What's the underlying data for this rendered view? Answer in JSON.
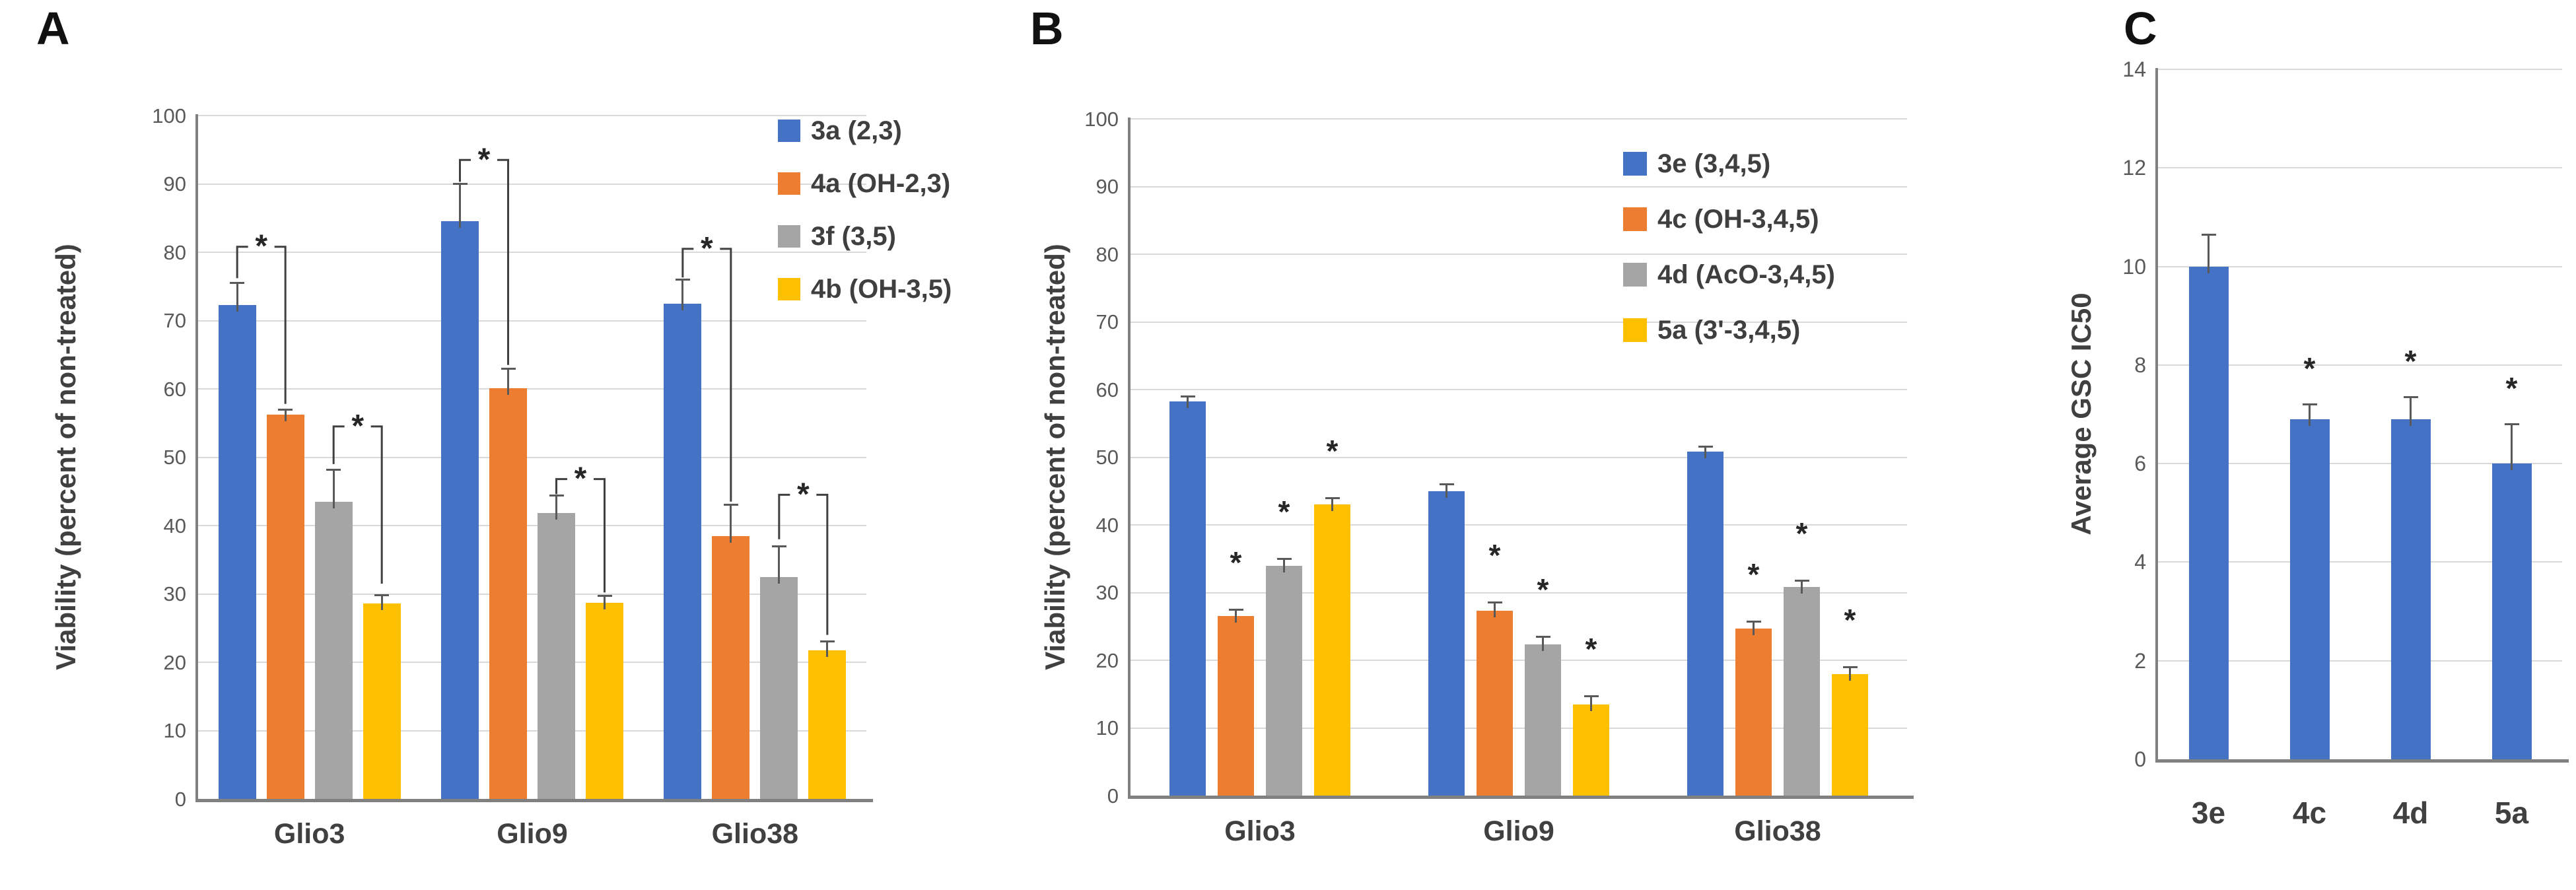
{
  "figure": {
    "background": "#FFFFFF"
  },
  "colors": {
    "axis_line": "#808080",
    "gridline": "#D9D9D9",
    "tick_text": "#595959",
    "label_text": "#404040",
    "legend_text": "#3f3f3f",
    "error_bar": "#595959",
    "star": "#262626",
    "series_blue": "#4472C4",
    "series_orange": "#ED7D31",
    "series_gray": "#A5A5A5",
    "series_yellow": "#FFC000"
  },
  "chart_data": [
    {
      "panel_label": "A",
      "type": "bar",
      "title": "",
      "ylabel": "Viability (percent of non-treated)",
      "xlabel": "",
      "ylim": [
        0,
        100
      ],
      "ytick_step": 10,
      "grid": true,
      "legend_position": "top-right",
      "categories": [
        "Glio3",
        "Glio9",
        "Glio38"
      ],
      "series": [
        {
          "name": "3a (2,3)",
          "color": "#4472C4",
          "values": [
            72.3,
            84.5,
            72.5
          ],
          "errors": [
            3.2,
            5.5,
            3.5
          ],
          "stars": [
            false,
            false,
            false
          ]
        },
        {
          "name": "4a (OH-2,3)",
          "color": "#ED7D31",
          "values": [
            56.2,
            60.1,
            38.5
          ],
          "errors": [
            0.8,
            2.8,
            4.5
          ],
          "stars": [
            false,
            false,
            false
          ]
        },
        {
          "name": "3f (3,5)",
          "color": "#A5A5A5",
          "values": [
            43.5,
            41.8,
            32.5
          ],
          "errors": [
            4.7,
            2.6,
            4.5
          ],
          "stars": [
            false,
            false,
            false
          ]
        },
        {
          "name": "4b (OH-3,5)",
          "color": "#FFC000",
          "values": [
            28.6,
            28.7,
            21.7
          ],
          "errors": [
            1.2,
            1.0,
            1.3
          ],
          "stars": [
            false,
            false,
            false
          ]
        }
      ],
      "sig_brackets": [
        {
          "group": 0,
          "from": 0,
          "to": 1,
          "top": 80.8,
          "left_end": 76.2,
          "right_end": 57.8,
          "label": "*"
        },
        {
          "group": 0,
          "from": 2,
          "to": 3,
          "top": 54.5,
          "left_end": 49.0,
          "right_end": 31.5,
          "label": "*"
        },
        {
          "group": 1,
          "from": 0,
          "to": 1,
          "top": 93.5,
          "left_end": 90.3,
          "right_end": 63.5,
          "label": "*"
        },
        {
          "group": 1,
          "from": 2,
          "to": 3,
          "top": 46.8,
          "left_end": 44.6,
          "right_end": 30.2,
          "label": "*"
        },
        {
          "group": 2,
          "from": 0,
          "to": 1,
          "top": 80.5,
          "left_end": 76.3,
          "right_end": 43.5,
          "label": "*"
        },
        {
          "group": 2,
          "from": 2,
          "to": 3,
          "top": 44.5,
          "left_end": 38.0,
          "right_end": 24.0,
          "label": "*"
        }
      ],
      "star_offset": 0
    },
    {
      "panel_label": "B",
      "type": "bar",
      "title": "",
      "ylabel": "Viability (percent of non-treated)",
      "xlabel": "",
      "ylim": [
        0,
        100
      ],
      "ytick_step": 10,
      "grid": true,
      "legend_position": "top-right",
      "categories": [
        "Glio3",
        "Glio9",
        "Glio38"
      ],
      "series": [
        {
          "name": "3e (3,4,5)",
          "color": "#4472C4",
          "values": [
            58.2,
            45.0,
            50.8
          ],
          "errors": [
            0.8,
            1.0,
            0.8
          ],
          "stars": [
            false,
            false,
            false
          ]
        },
        {
          "name": "4c (OH-3,4,5)",
          "color": "#ED7D31",
          "values": [
            26.5,
            27.3,
            24.7
          ],
          "errors": [
            1.0,
            1.2,
            1.0
          ],
          "stars": [
            true,
            true,
            true
          ]
        },
        {
          "name": "4d (AcO-3,4,5)",
          "color": "#A5A5A5",
          "values": [
            34.0,
            22.3,
            30.8
          ],
          "errors": [
            1.0,
            1.2,
            1.0
          ],
          "stars": [
            true,
            true,
            true
          ]
        },
        {
          "name": "5a (3'-3,4,5)",
          "color": "#FFC000",
          "values": [
            43.0,
            13.5,
            18.0
          ],
          "errors": [
            1.0,
            1.2,
            1.0
          ],
          "stars": [
            true,
            true,
            true
          ]
        }
      ],
      "sig_brackets": [],
      "star_offset": 6
    },
    {
      "panel_label": "C",
      "type": "bar",
      "title": "",
      "ylabel": "Average GSC IC50",
      "xlabel": "",
      "ylim": [
        0,
        14
      ],
      "ytick_step": 2,
      "grid": true,
      "legend_position": "none",
      "categories": [
        "3e",
        "4c",
        "4d",
        "5a"
      ],
      "series": [
        {
          "name": "",
          "color": "#4472C4",
          "values": [
            10.0,
            6.9,
            6.9,
            6.0
          ],
          "errors": [
            0.65,
            0.3,
            0.45,
            0.8
          ],
          "stars": [
            false,
            true,
            true,
            true
          ]
        }
      ],
      "sig_brackets": [],
      "star_offset": 0.6
    }
  ]
}
